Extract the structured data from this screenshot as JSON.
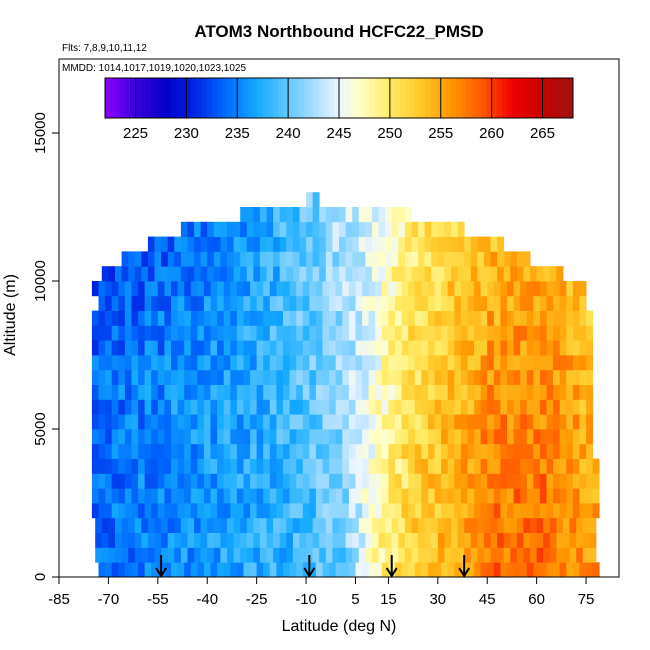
{
  "chart_data": {
    "type": "heatmap",
    "title": "ATOM3 Northbound HCFC22_PMSD",
    "flights_note": "Flts: 7,8,9,10,11,12",
    "dates_note": "MMDD: 1014,1017,1019,1020,1023,1025",
    "xlabel": "Latitude (deg N)",
    "ylabel": "Altitude (m)",
    "xlim": [
      -85,
      85
    ],
    "ylim": [
      0,
      17500
    ],
    "x_ticks": [
      "-85",
      "-70",
      "-55",
      "-40",
      "-25",
      "-10",
      "5",
      "15",
      "30",
      "45",
      "60",
      "75"
    ],
    "x_tick_values": [
      -85,
      -70,
      -55,
      -40,
      -25,
      -10,
      5,
      15,
      30,
      45,
      60,
      75
    ],
    "y_ticks": [
      "0",
      "5000",
      "10000",
      "15000"
    ],
    "y_tick_values": [
      0,
      5000,
      10000,
      15000
    ],
    "colorbar": {
      "ticks": [
        "225",
        "230",
        "235",
        "240",
        "245",
        "250",
        "255",
        "260",
        "265"
      ],
      "tick_values": [
        225,
        230,
        235,
        240,
        245,
        250,
        255,
        260,
        265
      ],
      "range": [
        222,
        268
      ]
    },
    "arrows_lat": [
      -54,
      -9,
      16,
      38
    ],
    "altitude_bands_m": [
      500,
      1000,
      1500,
      2000,
      2500,
      3000,
      3500,
      4000,
      4500,
      5000,
      5500,
      6000,
      6500,
      7000,
      7500,
      8000,
      8500,
      9000,
      9500,
      10000,
      10500,
      11000,
      11500,
      12000,
      12500,
      13000
    ],
    "latitude_coverage_by_band": [
      [
        -73,
        78
      ],
      [
        -74,
        78
      ],
      [
        -74,
        78
      ],
      [
        -74,
        78
      ],
      [
        -75,
        78
      ],
      [
        -75,
        78
      ],
      [
        -75,
        78
      ],
      [
        -75,
        78
      ],
      [
        -75,
        77
      ],
      [
        -75,
        77
      ],
      [
        -75,
        77
      ],
      [
        -75,
        76
      ],
      [
        -75,
        76
      ],
      [
        -75,
        76
      ],
      [
        -75,
        76
      ],
      [
        -75,
        76
      ],
      [
        -75,
        76
      ],
      [
        -75,
        76
      ],
      [
        -73,
        75
      ],
      [
        -75,
        75
      ],
      [
        -72,
        68
      ],
      [
        -66,
        58
      ],
      [
        -58,
        50
      ],
      [
        -48,
        38
      ],
      [
        -30,
        22
      ],
      [
        -10,
        -6
      ]
    ],
    "value_profile": {
      "latitudes": [
        -75,
        -60,
        -45,
        -30,
        -15,
        0,
        10,
        20,
        30,
        45,
        60,
        75
      ],
      "low_altitude": [
        234,
        235,
        236,
        237,
        238,
        240,
        248,
        252,
        254,
        258,
        258,
        256
      ],
      "mid_altitude": [
        234,
        235,
        236,
        237,
        239,
        242,
        246,
        251,
        253,
        256,
        257,
        254
      ],
      "high_altitude": [
        231,
        232,
        234,
        236,
        239,
        243,
        245,
        249,
        251,
        253,
        254,
        252
      ]
    }
  }
}
